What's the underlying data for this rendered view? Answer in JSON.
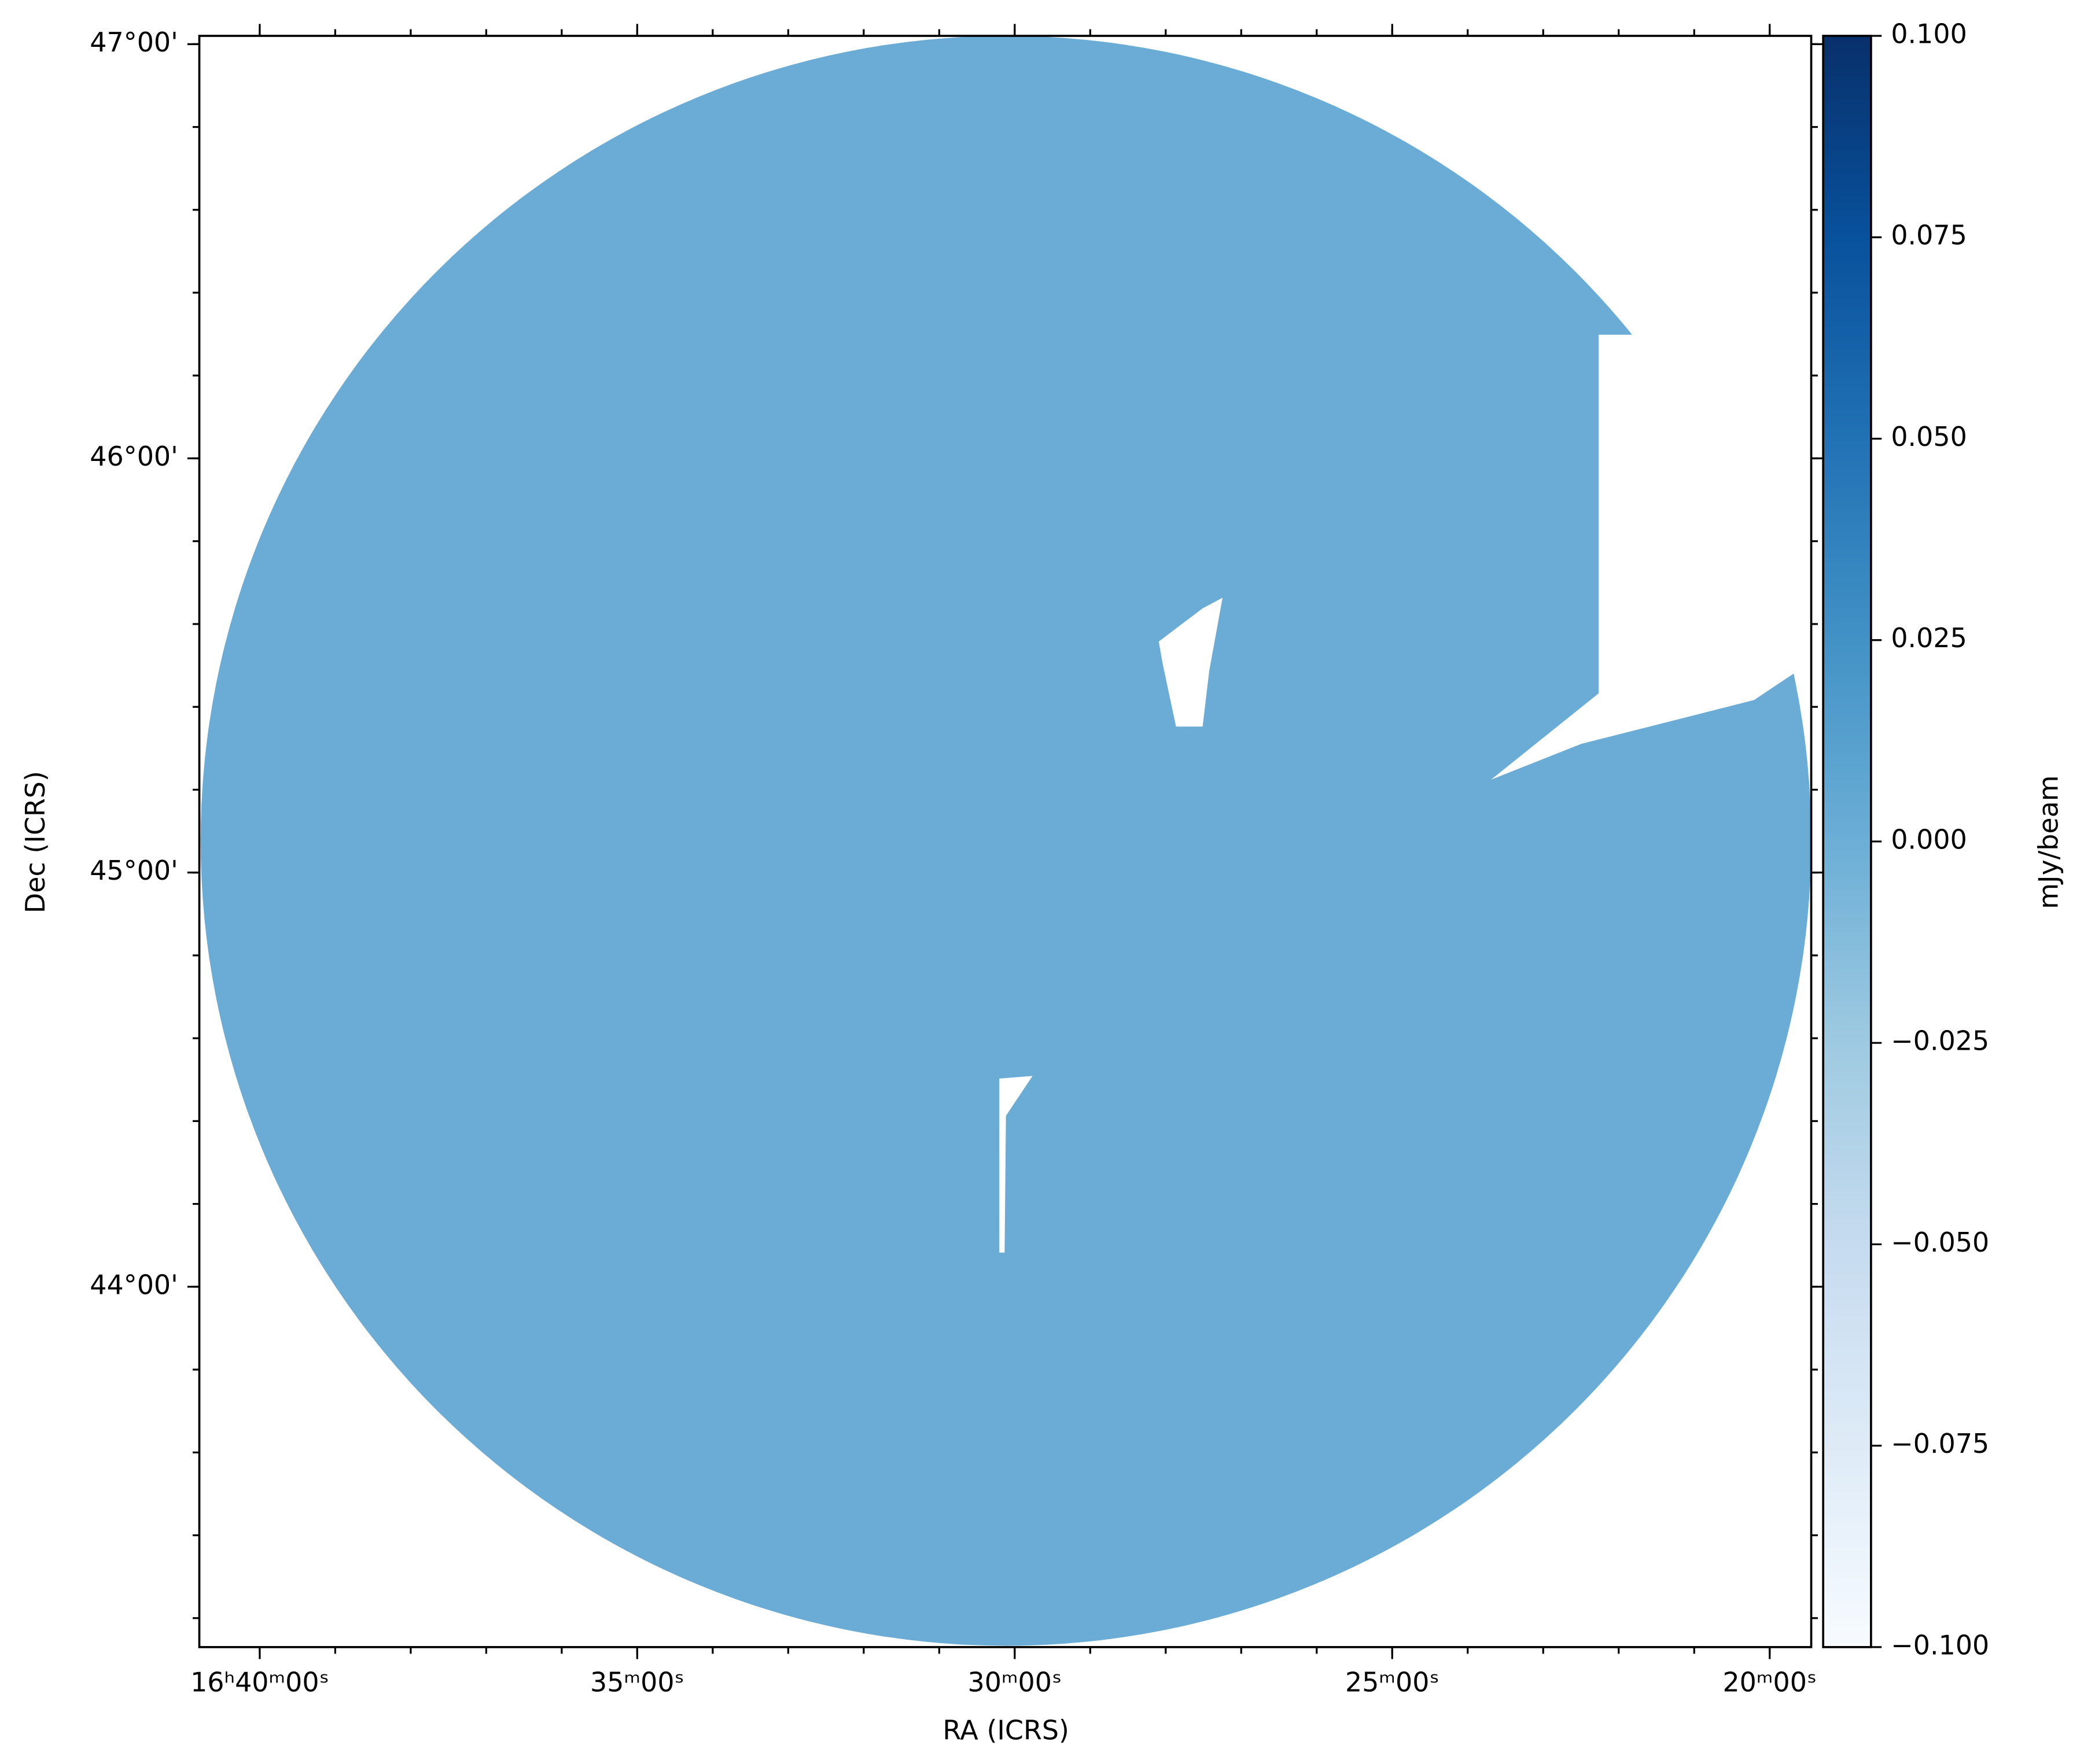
{
  "chart_data": {
    "type": "image",
    "xlabel": "RA (ICRS)",
    "ylabel": "Dec (ICRS)",
    "xlim": [
      40.8,
      19.45
    ],
    "xticks": [
      {
        "value": 40,
        "label": "16ʰ40ᵐ00ˢ"
      },
      {
        "value": 35,
        "label": "35ᵐ00ˢ"
      },
      {
        "value": 30,
        "label": "30ᵐ00ˢ"
      },
      {
        "value": 25,
        "label": "25ᵐ00ˢ"
      },
      {
        "value": 20,
        "label": "20ᵐ00ˢ"
      }
    ],
    "ylim": [
      43.13,
      47.02
    ],
    "yticks": [
      {
        "value": 44,
        "label": "44°00'"
      },
      {
        "value": 45,
        "label": "45°00'"
      },
      {
        "value": 46,
        "label": "46°00'"
      },
      {
        "value": 47,
        "label": "47°00'"
      }
    ],
    "image_color": "#6aacd5",
    "colorbar": {
      "label": "mJy/beam",
      "lim": [
        -0.1,
        0.1
      ],
      "ticks": [
        {
          "value": -0.1,
          "label": "−0.100"
        },
        {
          "value": -0.075,
          "label": "−0.075"
        },
        {
          "value": -0.05,
          "label": "−0.050"
        },
        {
          "value": -0.025,
          "label": "−0.025"
        },
        {
          "value": 0,
          "label": "0.000"
        },
        {
          "value": 0.025,
          "label": "0.025"
        },
        {
          "value": 0.05,
          "label": "0.050"
        },
        {
          "value": 0.075,
          "label": "0.075"
        },
        {
          "value": 0.1,
          "label": "0.100"
        }
      ],
      "colormap": [
        "#f7fbff",
        "#deebf7",
        "#c6dbef",
        "#9ecae1",
        "#6baed6",
        "#4292c6",
        "#2171b5",
        "#08519c",
        "#08306b"
      ]
    }
  }
}
